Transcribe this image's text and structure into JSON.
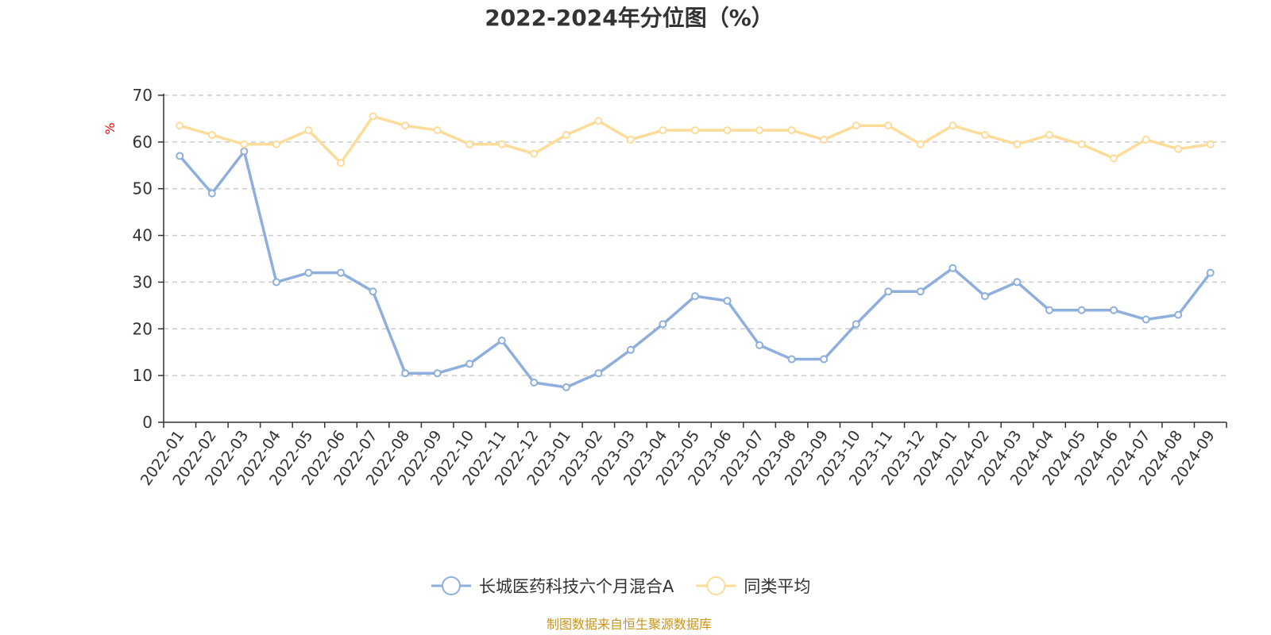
{
  "chart_data": {
    "type": "line",
    "title": "2022-2024年分位图（%）",
    "ylabel": "%",
    "xlabel": "",
    "ylim": [
      0,
      70
    ],
    "yticks": [
      0,
      10,
      20,
      30,
      40,
      50,
      60,
      70
    ],
    "grid": true,
    "legend_position": "bottom-center",
    "categories": [
      "2022-01",
      "2022-02",
      "2022-03",
      "2022-04",
      "2022-05",
      "2022-06",
      "2022-07",
      "2022-08",
      "2022-09",
      "2022-10",
      "2022-11",
      "2022-12",
      "2023-01",
      "2023-02",
      "2023-03",
      "2023-04",
      "2023-05",
      "2023-06",
      "2023-07",
      "2023-08",
      "2023-09",
      "2023-10",
      "2023-11",
      "2023-12",
      "2024-01",
      "2024-02",
      "2024-03",
      "2024-04",
      "2024-05",
      "2024-06",
      "2024-07",
      "2024-08",
      "2024-09"
    ],
    "series": [
      {
        "name": "长城医药科技六个月混合A",
        "color": "#8eaedc",
        "values": [
          57,
          49,
          58,
          30,
          32,
          32,
          28,
          10.5,
          10.5,
          12.5,
          17.5,
          8.5,
          7.5,
          10.5,
          15.5,
          21,
          27,
          26,
          16.5,
          13.5,
          13.5,
          21,
          28,
          28,
          33,
          27,
          30,
          24,
          24,
          24,
          22,
          23,
          32
        ]
      },
      {
        "name": "同类平均",
        "color": "#fddc9a",
        "values": [
          63.5,
          61.5,
          59.5,
          59.5,
          62.5,
          55.5,
          65.5,
          63.5,
          62.5,
          59.5,
          59.5,
          57.5,
          61.5,
          64.5,
          60.5,
          62.5,
          62.5,
          62.5,
          62.5,
          62.5,
          60.5,
          63.5,
          63.5,
          59.5,
          63.5,
          61.5,
          59.5,
          61.5,
          59.5,
          56.5,
          60.5,
          58.5,
          59.5
        ]
      }
    ]
  },
  "source_note": "制图数据来自恒生聚源数据库"
}
